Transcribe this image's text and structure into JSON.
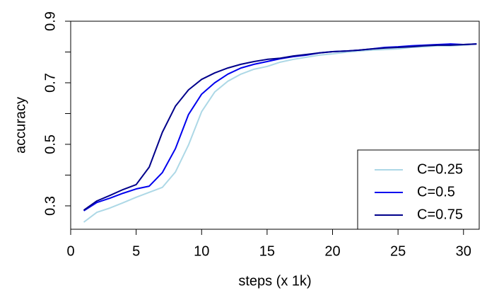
{
  "chart_data": {
    "type": "line",
    "x_label": "steps (x 1k)",
    "y_label": "accuracy",
    "x": [
      1,
      2,
      3,
      4,
      5,
      6,
      7,
      8,
      9,
      10,
      11,
      12,
      13,
      14,
      15,
      16,
      17,
      18,
      19,
      20,
      21,
      22,
      23,
      24,
      25,
      26,
      27,
      28,
      29,
      30,
      31
    ],
    "series": [
      {
        "name": "C=0.25",
        "color": "#add8e6",
        "values": [
          0.247,
          0.279,
          0.293,
          0.31,
          0.328,
          0.344,
          0.36,
          0.41,
          0.498,
          0.606,
          0.67,
          0.705,
          0.728,
          0.744,
          0.753,
          0.767,
          0.776,
          0.783,
          0.79,
          0.794,
          0.799,
          0.803,
          0.806,
          0.808,
          0.81,
          0.815,
          0.817,
          0.82,
          0.82,
          0.822,
          0.826
        ]
      },
      {
        "name": "C=0.5",
        "color": "#0000ee",
        "values": [
          0.284,
          0.311,
          0.325,
          0.341,
          0.355,
          0.364,
          0.408,
          0.486,
          0.597,
          0.663,
          0.7,
          0.728,
          0.748,
          0.76,
          0.769,
          0.778,
          0.785,
          0.79,
          0.797,
          0.801,
          0.803,
          0.806,
          0.81,
          0.815,
          0.817,
          0.82,
          0.822,
          0.824,
          0.826,
          0.824,
          0.826
        ]
      },
      {
        "name": "C=0.75",
        "color": "#00008b",
        "values": [
          0.286,
          0.316,
          0.334,
          0.353,
          0.369,
          0.426,
          0.539,
          0.624,
          0.677,
          0.711,
          0.732,
          0.748,
          0.76,
          0.769,
          0.776,
          0.78,
          0.787,
          0.792,
          0.797,
          0.801,
          0.803,
          0.806,
          0.81,
          0.813,
          0.815,
          0.817,
          0.82,
          0.822,
          0.822,
          0.824,
          0.826
        ]
      }
    ],
    "xlim": [
      0,
      31.2
    ],
    "ylim": [
      0.224,
      0.9
    ],
    "xticks": [
      0,
      5,
      10,
      15,
      20,
      25,
      30
    ],
    "yticks": [
      0.3,
      0.5,
      0.7,
      0.9
    ],
    "yminor_ticks": [
      0.4,
      0.6,
      0.8
    ],
    "legend": "bottomright",
    "grid": false
  }
}
